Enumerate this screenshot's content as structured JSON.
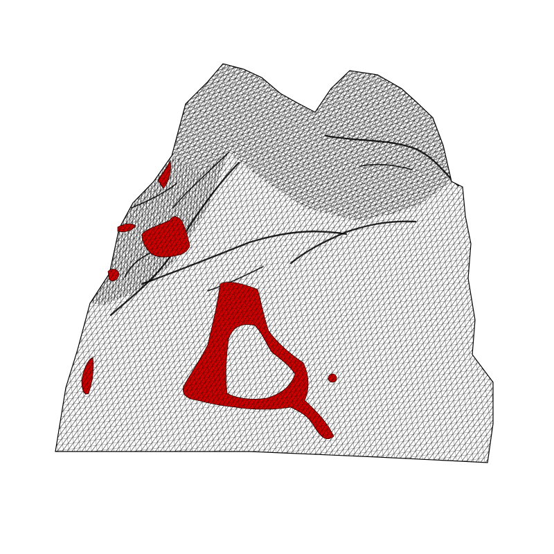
{
  "figure": {
    "background_color": "#ffffff",
    "mesh_fill_color": "#ffffff",
    "mesh_line_color": "#000000",
    "highlight_color": "#cc0000",
    "highlight_edge_color": "#330000"
  }
}
